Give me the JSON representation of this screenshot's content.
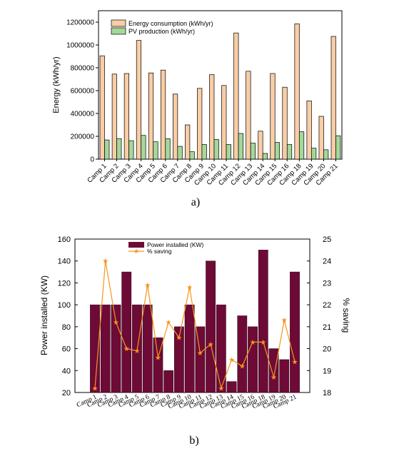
{
  "chart_data": [
    {
      "type": "bar",
      "panel_label": "a)",
      "title": "",
      "xlabel": "",
      "ylabel": "Energy (kWh/yr)",
      "ylim": [
        0,
        1300000
      ],
      "yticks": [
        0,
        200000,
        400000,
        600000,
        800000,
        1000000,
        1200000
      ],
      "categories": [
        "Camp 1",
        "Camp 2",
        "Camp 3",
        "Camp 4",
        "Camp 5",
        "Camp 6",
        "Camp 7",
        "Camp 8",
        "Camp 9",
        "Camp 10",
        "Camp 11",
        "Camp 12",
        "Camp 13",
        "Camp 14",
        "Camp 15",
        "Camp 16",
        "Camp 18",
        "Camp 19",
        "Camp 20",
        "Camp 21"
      ],
      "legend_position": "top-left",
      "grid": false,
      "series": [
        {
          "name": "Energy consumption (kWh/yr)",
          "color": "#f9cda5",
          "values": [
            905000,
            745000,
            750000,
            1040000,
            755000,
            780000,
            570000,
            300000,
            620000,
            740000,
            645000,
            1105000,
            770000,
            245000,
            750000,
            630000,
            1185000,
            510000,
            375000,
            1075000
          ]
        },
        {
          "name": "PV production (kWh/yr)",
          "color": "#a4d89a",
          "values": [
            168000,
            180000,
            162000,
            208000,
            152000,
            180000,
            112000,
            65000,
            128000,
            172000,
            128000,
            225000,
            140000,
            50000,
            146000,
            128000,
            240000,
            96000,
            82000,
            205000
          ]
        }
      ]
    },
    {
      "type": "bar",
      "panel_label": "b)",
      "title": "",
      "xlabel": "",
      "ylabel": "Power installed (KW)",
      "ylabel_right": "% saving",
      "ylim": [
        20,
        160
      ],
      "yticks": [
        20,
        40,
        60,
        80,
        100,
        120,
        140,
        160
      ],
      "ylim_right": [
        18,
        25
      ],
      "yticks_right": [
        18,
        19,
        20,
        21,
        22,
        23,
        24,
        25
      ],
      "categories": [
        "Camp 1",
        "Camp 2",
        "Camp 3",
        "Camp 4",
        "Camp 5",
        "Camp 6",
        "Camp 7",
        "Camp 8",
        "Camp 9",
        "Camp 10",
        "Camp 11",
        "Camp 12",
        "Camp 13",
        "Camp 14",
        "Camp 15",
        "Camp 16",
        "Camp 18",
        "Camp 19",
        "Camp 20",
        "Camp 21"
      ],
      "legend_position": "top-center",
      "grid": false,
      "series": [
        {
          "name": "Power installed (KW)",
          "type": "bar",
          "axis": "left",
          "color": "#6e0a36",
          "values": [
            100,
            100,
            100,
            130,
            100,
            100,
            70,
            40,
            80,
            100,
            80,
            140,
            100,
            30,
            90,
            80,
            150,
            60,
            50,
            130
          ]
        },
        {
          "name": "% saving",
          "type": "line",
          "axis": "right",
          "color": "#f7941d",
          "values": [
            18.2,
            24.0,
            21.2,
            20.0,
            19.9,
            22.9,
            19.6,
            21.2,
            20.5,
            22.8,
            19.8,
            20.2,
            18.2,
            19.5,
            19.2,
            20.3,
            20.3,
            18.7,
            21.3,
            19.4
          ]
        }
      ]
    }
  ]
}
